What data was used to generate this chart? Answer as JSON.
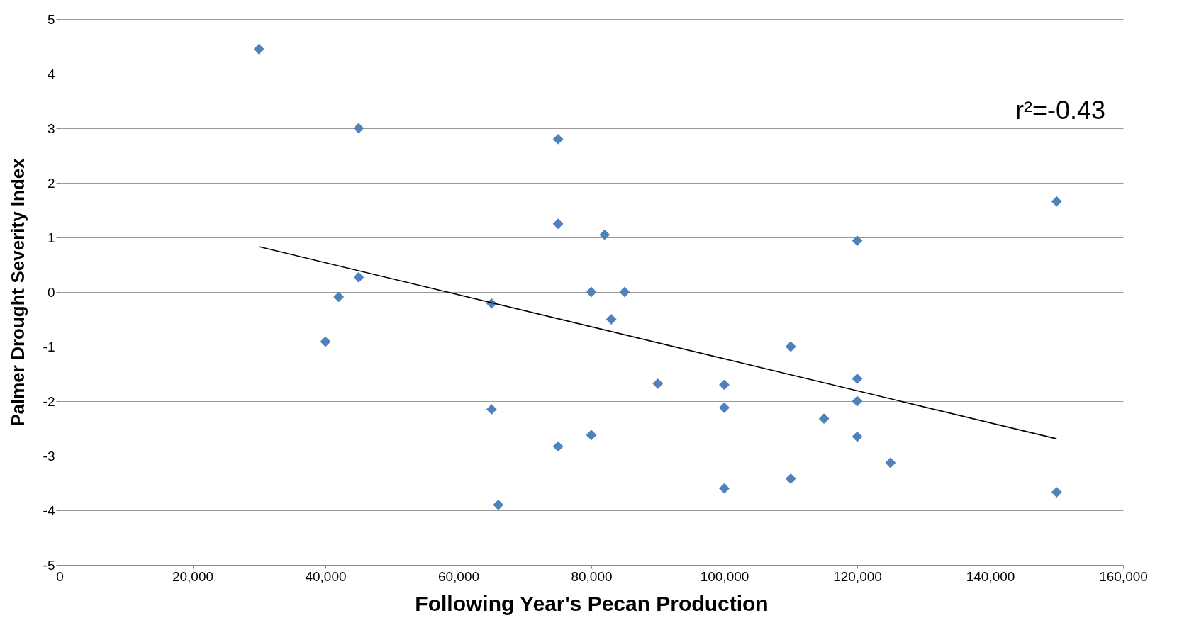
{
  "chart_data": {
    "type": "scatter",
    "xlabel": "Following Year's Pecan Production",
    "ylabel": "Palmer Drought Severity Index",
    "annotations": [
      "r²=-0.43"
    ],
    "xlim": [
      0,
      160000
    ],
    "xticks": [
      0,
      {
        "value": 20000,
        "label": "20,000"
      },
      {
        "value": 40000,
        "label": "40,000"
      },
      {
        "value": 60000,
        "label": "60,000"
      },
      {
        "value": 80000,
        "label": "80,000"
      },
      {
        "value": 100000,
        "label": "100,000"
      },
      {
        "value": 120000,
        "label": "120,000"
      },
      {
        "value": 140000,
        "label": "140,000"
      },
      {
        "value": 160000,
        "label": "160,000"
      }
    ],
    "ylim": [
      -5,
      5
    ],
    "yticks": [
      -5,
      -4,
      -3,
      -2,
      -1,
      0,
      1,
      2,
      3,
      4,
      5
    ],
    "grid": "y",
    "series": [
      {
        "color": "#4f81bd",
        "marker": "diamond",
        "x": [
          30000,
          45000,
          75000,
          75000,
          82000,
          150000,
          120000,
          45000,
          42000,
          40000,
          65000,
          80000,
          85000,
          83000,
          110000,
          90000,
          100000,
          100000,
          120000,
          120000,
          115000,
          65000,
          75000,
          80000,
          120000,
          125000,
          66000,
          100000,
          110000,
          150000
        ],
        "values": [
          4.45,
          3.0,
          2.8,
          1.25,
          1.05,
          1.66,
          0.94,
          0.27,
          -0.09,
          -0.91,
          -0.21,
          0.0,
          0.0,
          -0.5,
          -1.0,
          -1.68,
          -1.7,
          -2.12,
          -1.59,
          -2.0,
          -2.32,
          -2.15,
          -2.83,
          -2.62,
          -2.65,
          -3.13,
          -3.9,
          -3.6,
          -3.42,
          -3.67
        ]
      },
      {
        "type": "line",
        "color": "#000000",
        "x": [
          30000,
          150000
        ],
        "values": [
          0.83,
          -2.69
        ]
      }
    ]
  }
}
